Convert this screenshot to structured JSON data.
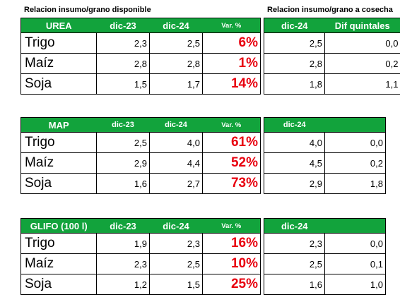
{
  "captions": {
    "left": "Relacion insumo/grano disponible",
    "right": "Relacion insumo/grano a cosecha"
  },
  "colors": {
    "header_bg": "#12a33c",
    "header_text": "#ffffff",
    "variation_text": "#e8000f"
  },
  "sections": [
    {
      "name": "UREA",
      "headers": [
        "dic-23",
        "dic-24",
        "Var. %"
      ],
      "right_headers": [
        "dic-24",
        "Dif quintales"
      ],
      "rows": [
        {
          "crop": "Trigo",
          "dic23": "2,3",
          "dic24": "2,5",
          "var": "6%",
          "cosecha": "2,5",
          "dif": "0,0"
        },
        {
          "crop": "Maíz",
          "dic23": "2,8",
          "dic24": "2,8",
          "var": "1%",
          "cosecha": "2,8",
          "dif": "0,2"
        },
        {
          "crop": "Soja",
          "dic23": "1,5",
          "dic24": "1,7",
          "var": "14%",
          "cosecha": "1,8",
          "dif": "1,1"
        }
      ]
    },
    {
      "name": "MAP",
      "headers": [
        "dic-23",
        "dic-24",
        "Var. %"
      ],
      "right_headers": [
        "dic-24",
        ""
      ],
      "rows": [
        {
          "crop": "Trigo",
          "dic23": "2,5",
          "dic24": "4,0",
          "var": "61%",
          "cosecha": "4,0",
          "dif": "0,0"
        },
        {
          "crop": "Maíz",
          "dic23": "2,9",
          "dic24": "4,4",
          "var": "52%",
          "cosecha": "4,5",
          "dif": "0,2"
        },
        {
          "crop": "Soja",
          "dic23": "1,6",
          "dic24": "2,7",
          "var": "73%",
          "cosecha": "2,9",
          "dif": "1,8"
        }
      ]
    },
    {
      "name": "GLIFO (100 l)",
      "headers": [
        "dic-23",
        "dic-24",
        "Var. %"
      ],
      "right_headers": [
        "dic-24",
        ""
      ],
      "rows": [
        {
          "crop": "Trigo",
          "dic23": "1,9",
          "dic24": "2,3",
          "var": "16%",
          "cosecha": "2,3",
          "dif": "0,0"
        },
        {
          "crop": "Maíz",
          "dic23": "2,3",
          "dic24": "2,5",
          "var": "10%",
          "cosecha": "2,5",
          "dif": "0,1"
        },
        {
          "crop": "Soja",
          "dic23": "1,2",
          "dic24": "1,5",
          "var": "25%",
          "cosecha": "1,6",
          "dif": "1,0"
        }
      ]
    }
  ]
}
